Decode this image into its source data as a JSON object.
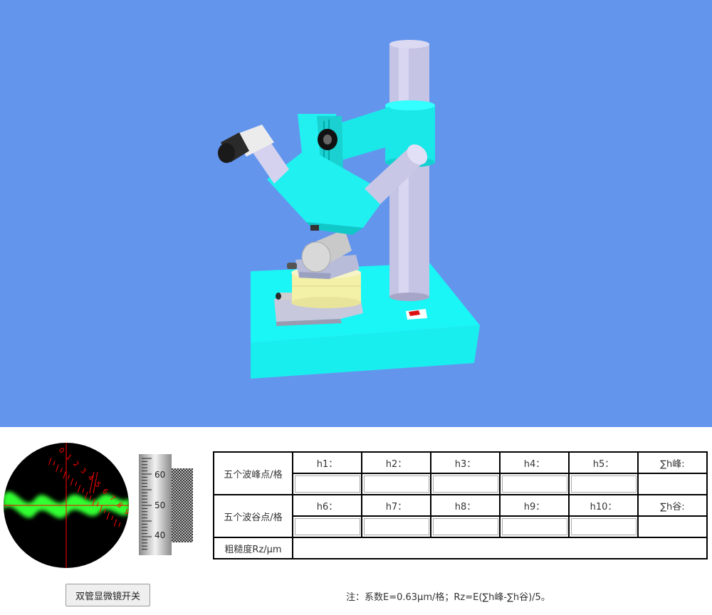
{
  "scene": {
    "background_color": "#6495ed",
    "accent_color": "#1fffff"
  },
  "eyepiece": {
    "scale_labels": [
      "0",
      "1",
      "2",
      "3",
      "4",
      "5",
      "6",
      "7",
      "8",
      "9"
    ],
    "crosshair_color": "#ff0000",
    "fringe_color": "#33ff33"
  },
  "drum": {
    "labels": [
      "60",
      "50",
      "40"
    ]
  },
  "controls": {
    "power_button_label": "双管显微镜开关"
  },
  "table": {
    "peak_row_label": "五个波峰点/格",
    "valley_row_label": "五个波谷点/格",
    "roughness_label": "粗糙度Rz/μm",
    "peak_headers": [
      "h1：",
      "h2：",
      "h3：",
      "h4：",
      "h5：",
      "∑h峰:"
    ],
    "valley_headers": [
      "h6：",
      "h7：",
      "h8：",
      "h9：",
      "h10：",
      "∑h谷:"
    ]
  },
  "note": "注：系数E=0.63μm/格；Rz=E(∑h峰-∑h谷)/5。"
}
